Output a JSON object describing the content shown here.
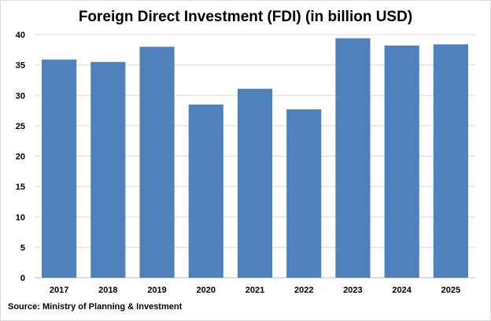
{
  "chart_data": {
    "type": "bar",
    "title": "Foreign Direct Investment (FDI) (in billion USD)",
    "xlabel": "",
    "ylabel": "",
    "categories": [
      "2017",
      "2018",
      "2019",
      "2020",
      "2021",
      "2022",
      "2023",
      "2024",
      "2025"
    ],
    "values": [
      35.9,
      35.5,
      38.0,
      28.5,
      31.1,
      27.7,
      39.4,
      38.2,
      38.4
    ],
    "ylim": [
      0,
      40
    ],
    "yticks": [
      0,
      5,
      10,
      15,
      20,
      25,
      30,
      35,
      40
    ],
    "grid": true,
    "legend": "none",
    "bar_color": "#4f81bd",
    "source": "Source: Ministry of Planning & Investment"
  }
}
